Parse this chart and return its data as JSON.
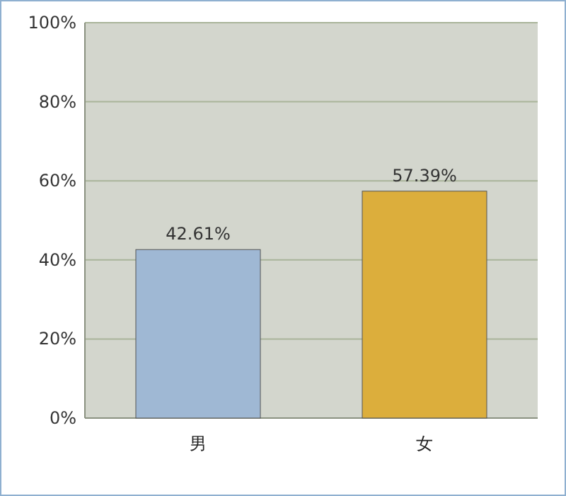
{
  "chart_data": {
    "type": "bar",
    "categories": [
      "男",
      "女"
    ],
    "values": [
      42.61,
      57.39
    ],
    "colors": [
      "#9fb8d4",
      "#dcae3c"
    ],
    "value_labels": [
      "42.61%",
      "57.39%"
    ],
    "ylim": [
      0,
      100
    ],
    "yticks": [
      {
        "value": 0,
        "label": "0%"
      },
      {
        "value": 20,
        "label": "20%"
      },
      {
        "value": 40,
        "label": "40%"
      },
      {
        "value": 60,
        "label": "60%"
      },
      {
        "value": 80,
        "label": "80%"
      },
      {
        "value": 100,
        "label": "100%"
      }
    ],
    "grid": "y"
  }
}
